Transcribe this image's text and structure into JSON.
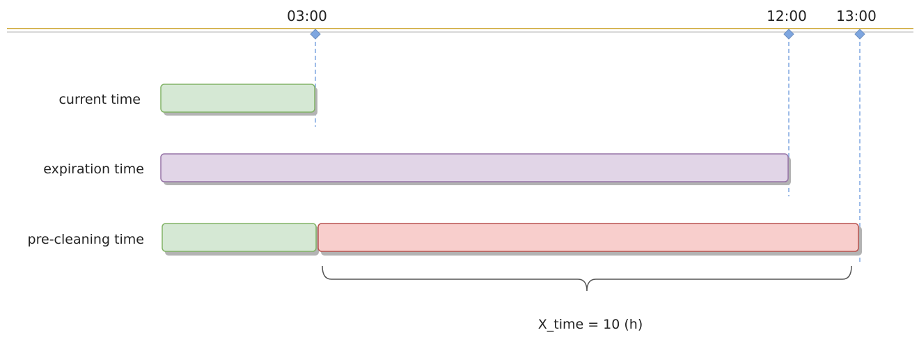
{
  "timeline": {
    "markers": [
      {
        "label": "03:00",
        "hour": 3
      },
      {
        "label": "12:00",
        "hour": 12
      },
      {
        "label": "13:00",
        "hour": 13
      }
    ]
  },
  "rows": {
    "current": {
      "label": "current time"
    },
    "expiration": {
      "label": "expiration time"
    },
    "precleaning": {
      "label": "pre-cleaning time"
    }
  },
  "annotation": {
    "label": "X_time = 10 (h)"
  },
  "colors": {
    "axis_line": "#d6b656",
    "axis_line_secondary": "#b0b0b0",
    "marker": "#6c8ebf",
    "marker_fill": "#7ea6e0",
    "green_fill": "#d5e8d4",
    "green_stroke": "#82b366",
    "purple_fill": "#e1d5e7",
    "purple_stroke": "#9673a6",
    "red_fill": "#f8cecc",
    "red_stroke": "#b85450",
    "shadow": "#b3b3b3",
    "brace": "#555555"
  }
}
